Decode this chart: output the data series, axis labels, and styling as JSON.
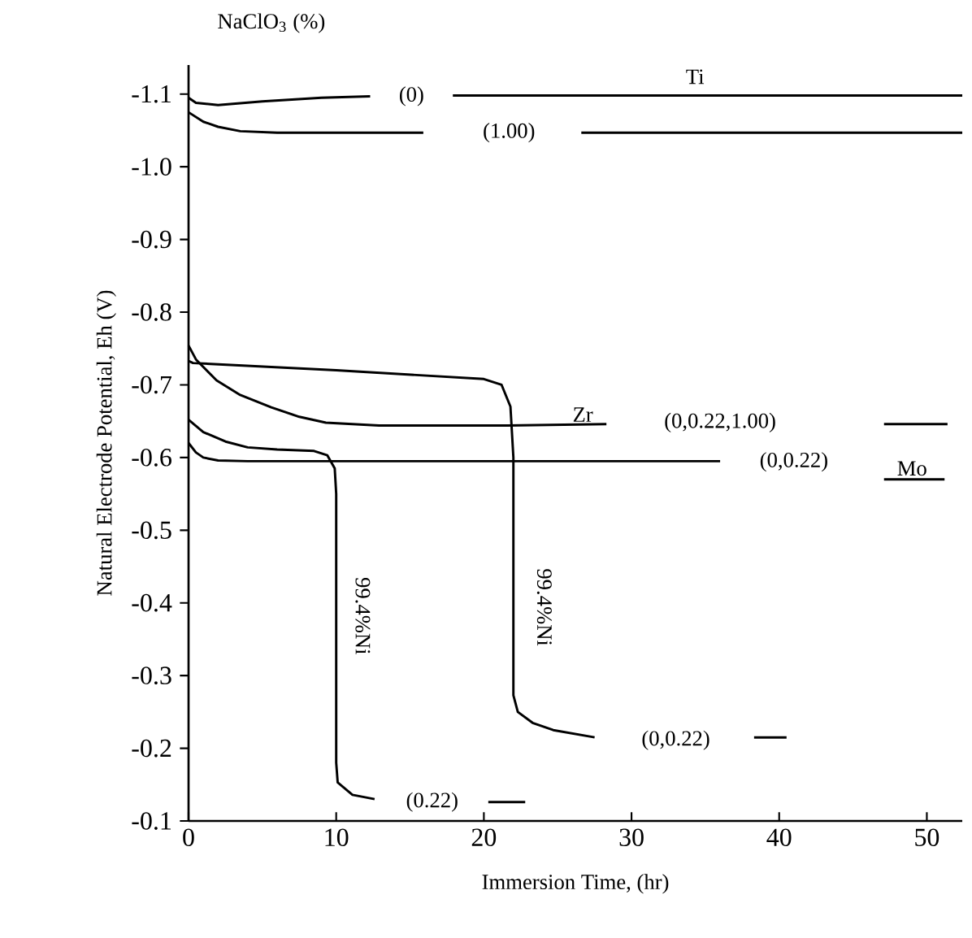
{
  "chart_data": {
    "type": "line",
    "title": "NaClO$_{3}$ (%)",
    "xlabel": "Immersion Time, (hr)",
    "ylabel": "Natural Electrode Potential, Eh (V)",
    "xlim": [
      0,
      52.4
    ],
    "ylim": [
      -0.1,
      -1.14
    ],
    "xticks": [
      0,
      10,
      20,
      30,
      40,
      50
    ],
    "yticks": [
      -1.1,
      {
        "value": -1.0,
        "label": "-1.0"
      },
      -0.9,
      -0.8,
      -0.7,
      -0.6,
      -0.5,
      -0.4,
      -0.3,
      -0.2,
      -0.1
    ],
    "series": [
      {
        "color": "#000000",
        "x": [
          0,
          0.5,
          2,
          5,
          9,
          12.3,
          null,
          17.9,
          52.4
        ],
        "values": [
          -1.095,
          -1.088,
          -1.085,
          -1.09,
          -1.095,
          -1.097,
          null,
          -1.098,
          -1.098
        ]
      },
      {
        "color": "#000000",
        "x": [
          0,
          1,
          2,
          3.5,
          6,
          15.9,
          null,
          26.6,
          52.4
        ],
        "values": [
          -1.075,
          -1.062,
          -1.055,
          -1.049,
          -1.047,
          -1.047,
          null,
          -1.047,
          -1.047
        ]
      },
      {
        "color": "#000000",
        "x": [
          0,
          0.5,
          1.9,
          3.5,
          5.6,
          7.5,
          9.3,
          12.9,
          21.6,
          28.3,
          null,
          47.1,
          51.4
        ],
        "values": [
          -0.754,
          -0.735,
          -0.706,
          -0.686,
          -0.669,
          -0.656,
          -0.648,
          -0.644,
          -0.644,
          -0.646,
          null,
          -0.646,
          -0.646
        ]
      },
      {
        "color": "#000000",
        "x": [
          0,
          0.5,
          1,
          2,
          4,
          36,
          null,
          47.1,
          51.2
        ],
        "values": [
          -0.62,
          -0.607,
          -0.6,
          -0.596,
          -0.595,
          -0.595,
          null,
          -0.57,
          -0.57
        ]
      },
      {
        "color": "#000000",
        "x": [
          0,
          0.3,
          10,
          20,
          21.2,
          21.8,
          22.0,
          22.0,
          22.3,
          23.3,
          24.7,
          27.5,
          null,
          38.3,
          40.5
        ],
        "values": [
          -0.733,
          -0.73,
          -0.72,
          -0.708,
          -0.7,
          -0.67,
          -0.6,
          -0.273,
          -0.25,
          -0.235,
          -0.225,
          -0.215,
          null,
          -0.215,
          -0.215
        ]
      },
      {
        "color": "#000000",
        "x": [
          0,
          1,
          2.5,
          4,
          6,
          8.5,
          9.4,
          9.9,
          10.0,
          10.0,
          10.1,
          11.1,
          12.6,
          null,
          20.3,
          22.8
        ],
        "values": [
          -0.652,
          -0.635,
          -0.622,
          -0.614,
          -0.611,
          -0.609,
          -0.603,
          -0.585,
          -0.55,
          -0.18,
          -0.153,
          -0.136,
          -0.13,
          null,
          -0.126,
          -0.126
        ]
      }
    ],
    "annotations": [
      "Ti",
      "(0)",
      "(1.00)",
      "Zr",
      "(0,0.22,1.00)",
      "(0,0.22)",
      "Mo",
      "99.4%Ni",
      "99.4%Ni",
      "(0,0.22)",
      "(0.22)"
    ]
  }
}
